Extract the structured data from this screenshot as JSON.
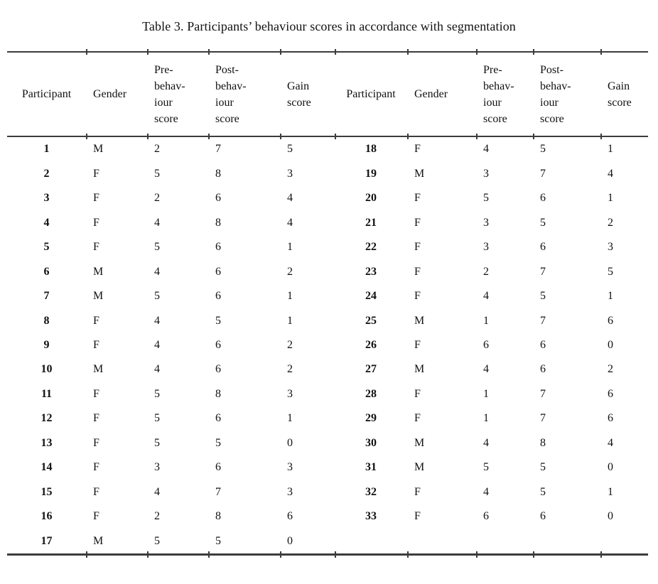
{
  "title": "Table 3. Participants’ behaviour scores in accordance with segmentation",
  "table": {
    "headers": [
      "Participant",
      "Gender",
      "Pre-\nbehav-\niour\nscore",
      "Post-\nbehav-\niour\nscore",
      "Gain\nscore",
      "Participant",
      "Gender",
      "Pre-\nbehav-\niour\nscore",
      "Post-\nbehav-\niour\nscore",
      "Gain\nscore"
    ],
    "left_rows": [
      [
        "1",
        "M",
        "2",
        "7",
        "5"
      ],
      [
        "2",
        "F",
        "5",
        "8",
        "3"
      ],
      [
        "3",
        "F",
        "2",
        "6",
        "4"
      ],
      [
        "4",
        "F",
        "4",
        "8",
        "4"
      ],
      [
        "5",
        "F",
        "5",
        "6",
        "1"
      ],
      [
        "6",
        "M",
        "4",
        "6",
        "2"
      ],
      [
        "7",
        "M",
        "5",
        "6",
        "1"
      ],
      [
        "8",
        "F",
        "4",
        "5",
        "1"
      ],
      [
        "9",
        "F",
        "4",
        "6",
        "2"
      ],
      [
        "10",
        "M",
        "4",
        "6",
        "2"
      ],
      [
        "11",
        "F",
        "5",
        "8",
        "3"
      ],
      [
        "12",
        "F",
        "5",
        "6",
        "1"
      ],
      [
        "13",
        "F",
        "5",
        "5",
        "0"
      ],
      [
        "14",
        "F",
        "3",
        "6",
        "3"
      ],
      [
        "15",
        "F",
        "4",
        "7",
        "3"
      ],
      [
        "16",
        "F",
        "2",
        "8",
        "6"
      ],
      [
        "17",
        "M",
        "5",
        "5",
        "0"
      ]
    ],
    "right_rows": [
      [
        "18",
        "F",
        "4",
        "5",
        "1"
      ],
      [
        "19",
        "M",
        "3",
        "7",
        "4"
      ],
      [
        "20",
        "F",
        "5",
        "6",
        "1"
      ],
      [
        "21",
        "F",
        "3",
        "5",
        "2"
      ],
      [
        "22",
        "F",
        "3",
        "6",
        "3"
      ],
      [
        "23",
        "F",
        "2",
        "7",
        "5"
      ],
      [
        "24",
        "F",
        "4",
        "5",
        "1"
      ],
      [
        "25",
        "M",
        "1",
        "7",
        "6"
      ],
      [
        "26",
        "F",
        "6",
        "6",
        "0"
      ],
      [
        "27",
        "M",
        "4",
        "6",
        "2"
      ],
      [
        "28",
        "F",
        "1",
        "7",
        "6"
      ],
      [
        "29",
        "F",
        "1",
        "7",
        "6"
      ],
      [
        "30",
        "M",
        "4",
        "8",
        "4"
      ],
      [
        "31",
        "M",
        "5",
        "5",
        "0"
      ],
      [
        "32",
        "F",
        "4",
        "5",
        "1"
      ],
      [
        "33",
        "F",
        "6",
        "6",
        "0"
      ]
    ],
    "rule_color": "#3c3c3c"
  }
}
